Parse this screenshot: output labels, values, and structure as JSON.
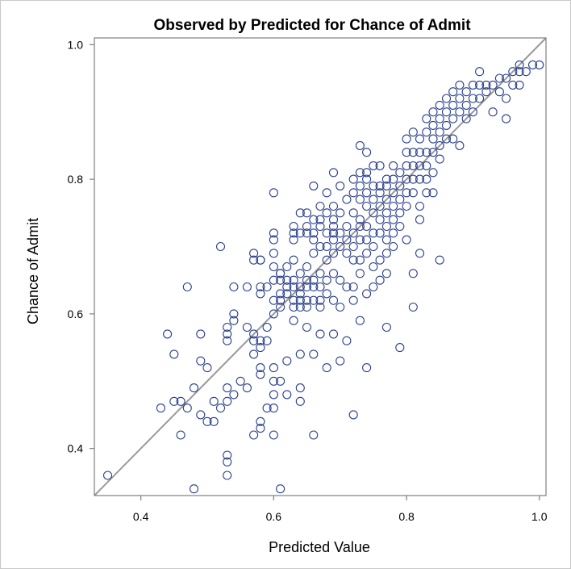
{
  "chart_data": {
    "type": "scatter",
    "title": "Observed by Predicted for Chance of Admit",
    "xlabel": "Predicted Value",
    "ylabel": "Chance of Admit",
    "xlim": [
      0.33,
      1.01
    ],
    "ylim": [
      0.33,
      1.01
    ],
    "xticks": [
      "0.4",
      "0.6",
      "0.8",
      "1.0"
    ],
    "yticks": [
      "0.4",
      "0.6",
      "0.8",
      "1.0"
    ],
    "xtick_values": [
      0.4,
      0.6,
      0.8,
      1.0
    ],
    "ytick_values": [
      0.4,
      0.6,
      0.8,
      1.0
    ],
    "reference_line": "y = x",
    "grid": false,
    "legend": "none",
    "colors": {
      "points": "#2a3f8f",
      "reference_line": "#999999",
      "axes": "#7f7f7f"
    },
    "points": [
      [
        0.35,
        0.36
      ],
      [
        0.43,
        0.46
      ],
      [
        0.44,
        0.57
      ],
      [
        0.45,
        0.47
      ],
      [
        0.45,
        0.54
      ],
      [
        0.46,
        0.47
      ],
      [
        0.46,
        0.42
      ],
      [
        0.47,
        0.46
      ],
      [
        0.47,
        0.64
      ],
      [
        0.48,
        0.34
      ],
      [
        0.48,
        0.49
      ],
      [
        0.49,
        0.45
      ],
      [
        0.49,
        0.53
      ],
      [
        0.49,
        0.57
      ],
      [
        0.5,
        0.52
      ],
      [
        0.5,
        0.44
      ],
      [
        0.51,
        0.44
      ],
      [
        0.51,
        0.47
      ],
      [
        0.52,
        0.46
      ],
      [
        0.52,
        0.7
      ],
      [
        0.53,
        0.47
      ],
      [
        0.53,
        0.49
      ],
      [
        0.53,
        0.39
      ],
      [
        0.53,
        0.38
      ],
      [
        0.53,
        0.36
      ],
      [
        0.53,
        0.56
      ],
      [
        0.53,
        0.57
      ],
      [
        0.53,
        0.58
      ],
      [
        0.54,
        0.59
      ],
      [
        0.54,
        0.6
      ],
      [
        0.54,
        0.48
      ],
      [
        0.54,
        0.64
      ],
      [
        0.55,
        0.5
      ],
      [
        0.56,
        0.64
      ],
      [
        0.56,
        0.49
      ],
      [
        0.56,
        0.58
      ],
      [
        0.57,
        0.69
      ],
      [
        0.57,
        0.68
      ],
      [
        0.57,
        0.57
      ],
      [
        0.57,
        0.56
      ],
      [
        0.57,
        0.54
      ],
      [
        0.57,
        0.42
      ],
      [
        0.58,
        0.68
      ],
      [
        0.58,
        0.68
      ],
      [
        0.58,
        0.64
      ],
      [
        0.58,
        0.63
      ],
      [
        0.58,
        0.56
      ],
      [
        0.58,
        0.55
      ],
      [
        0.58,
        0.52
      ],
      [
        0.58,
        0.51
      ],
      [
        0.58,
        0.44
      ],
      [
        0.58,
        0.43
      ],
      [
        0.59,
        0.64
      ],
      [
        0.59,
        0.58
      ],
      [
        0.59,
        0.56
      ],
      [
        0.59,
        0.46
      ],
      [
        0.6,
        0.65
      ],
      [
        0.6,
        0.62
      ],
      [
        0.6,
        0.6
      ],
      [
        0.6,
        0.5
      ],
      [
        0.6,
        0.48
      ],
      [
        0.6,
        0.46
      ],
      [
        0.6,
        0.42
      ],
      [
        0.6,
        0.78
      ],
      [
        0.6,
        0.72
      ],
      [
        0.6,
        0.71
      ],
      [
        0.6,
        0.69
      ],
      [
        0.6,
        0.67
      ],
      [
        0.6,
        0.52
      ],
      [
        0.61,
        0.66
      ],
      [
        0.61,
        0.61
      ],
      [
        0.61,
        0.34
      ],
      [
        0.61,
        0.66
      ],
      [
        0.61,
        0.65
      ],
      [
        0.61,
        0.63
      ],
      [
        0.61,
        0.62
      ],
      [
        0.61,
        0.5
      ],
      [
        0.62,
        0.67
      ],
      [
        0.62,
        0.65
      ],
      [
        0.62,
        0.64
      ],
      [
        0.62,
        0.63
      ],
      [
        0.62,
        0.48
      ],
      [
        0.62,
        0.53
      ],
      [
        0.63,
        0.65
      ],
      [
        0.63,
        0.64
      ],
      [
        0.63,
        0.62
      ],
      [
        0.63,
        0.61
      ],
      [
        0.63,
        0.59
      ],
      [
        0.63,
        0.72
      ],
      [
        0.63,
        0.73
      ],
      [
        0.63,
        0.71
      ],
      [
        0.63,
        0.68
      ],
      [
        0.64,
        0.66
      ],
      [
        0.64,
        0.64
      ],
      [
        0.64,
        0.63
      ],
      [
        0.64,
        0.62
      ],
      [
        0.64,
        0.61
      ],
      [
        0.64,
        0.49
      ],
      [
        0.64,
        0.47
      ],
      [
        0.64,
        0.54
      ],
      [
        0.64,
        0.75
      ],
      [
        0.64,
        0.72
      ],
      [
        0.65,
        0.65
      ],
      [
        0.65,
        0.64
      ],
      [
        0.65,
        0.62
      ],
      [
        0.65,
        0.61
      ],
      [
        0.65,
        0.58
      ],
      [
        0.65,
        0.67
      ],
      [
        0.65,
        0.75
      ],
      [
        0.65,
        0.73
      ],
      [
        0.65,
        0.72
      ],
      [
        0.66,
        0.69
      ],
      [
        0.66,
        0.65
      ],
      [
        0.66,
        0.64
      ],
      [
        0.66,
        0.62
      ],
      [
        0.66,
        0.79
      ],
      [
        0.66,
        0.74
      ],
      [
        0.66,
        0.72
      ],
      [
        0.66,
        0.71
      ],
      [
        0.66,
        0.54
      ],
      [
        0.66,
        0.42
      ],
      [
        0.67,
        0.66
      ],
      [
        0.67,
        0.64
      ],
      [
        0.67,
        0.62
      ],
      [
        0.67,
        0.74
      ],
      [
        0.67,
        0.73
      ],
      [
        0.67,
        0.7
      ],
      [
        0.67,
        0.61
      ],
      [
        0.67,
        0.57
      ],
      [
        0.67,
        0.76
      ],
      [
        0.68,
        0.78
      ],
      [
        0.68,
        0.75
      ],
      [
        0.68,
        0.72
      ],
      [
        0.68,
        0.7
      ],
      [
        0.68,
        0.68
      ],
      [
        0.68,
        0.65
      ],
      [
        0.68,
        0.63
      ],
      [
        0.68,
        0.52
      ],
      [
        0.69,
        0.81
      ],
      [
        0.69,
        0.76
      ],
      [
        0.69,
        0.74
      ],
      [
        0.69,
        0.73
      ],
      [
        0.69,
        0.72
      ],
      [
        0.69,
        0.71
      ],
      [
        0.69,
        0.69
      ],
      [
        0.69,
        0.66
      ],
      [
        0.69,
        0.62
      ],
      [
        0.69,
        0.57
      ],
      [
        0.7,
        0.79
      ],
      [
        0.7,
        0.75
      ],
      [
        0.7,
        0.72
      ],
      [
        0.7,
        0.7
      ],
      [
        0.7,
        0.65
      ],
      [
        0.7,
        0.61
      ],
      [
        0.7,
        0.53
      ],
      [
        0.71,
        0.77
      ],
      [
        0.71,
        0.73
      ],
      [
        0.71,
        0.71
      ],
      [
        0.71,
        0.69
      ],
      [
        0.71,
        0.64
      ],
      [
        0.71,
        0.56
      ],
      [
        0.72,
        0.8
      ],
      [
        0.72,
        0.78
      ],
      [
        0.72,
        0.75
      ],
      [
        0.72,
        0.72
      ],
      [
        0.72,
        0.7
      ],
      [
        0.72,
        0.68
      ],
      [
        0.72,
        0.64
      ],
      [
        0.72,
        0.62
      ],
      [
        0.72,
        0.45
      ],
      [
        0.73,
        0.85
      ],
      [
        0.73,
        0.81
      ],
      [
        0.73,
        0.79
      ],
      [
        0.73,
        0.77
      ],
      [
        0.73,
        0.74
      ],
      [
        0.73,
        0.73
      ],
      [
        0.73,
        0.71
      ],
      [
        0.73,
        0.68
      ],
      [
        0.73,
        0.66
      ],
      [
        0.73,
        0.59
      ],
      [
        0.74,
        0.84
      ],
      [
        0.74,
        0.81
      ],
      [
        0.74,
        0.8
      ],
      [
        0.74,
        0.78
      ],
      [
        0.74,
        0.76
      ],
      [
        0.74,
        0.73
      ],
      [
        0.74,
        0.71
      ],
      [
        0.74,
        0.69
      ],
      [
        0.74,
        0.63
      ],
      [
        0.74,
        0.52
      ],
      [
        0.75,
        0.82
      ],
      [
        0.75,
        0.79
      ],
      [
        0.75,
        0.77
      ],
      [
        0.75,
        0.75
      ],
      [
        0.75,
        0.72
      ],
      [
        0.75,
        0.7
      ],
      [
        0.75,
        0.67
      ],
      [
        0.75,
        0.64
      ],
      [
        0.76,
        0.82
      ],
      [
        0.76,
        0.79
      ],
      [
        0.76,
        0.78
      ],
      [
        0.76,
        0.76
      ],
      [
        0.76,
        0.74
      ],
      [
        0.76,
        0.72
      ],
      [
        0.76,
        0.68
      ],
      [
        0.76,
        0.65
      ],
      [
        0.77,
        0.8
      ],
      [
        0.77,
        0.79
      ],
      [
        0.77,
        0.77
      ],
      [
        0.77,
        0.75
      ],
      [
        0.77,
        0.73
      ],
      [
        0.77,
        0.71
      ],
      [
        0.77,
        0.69
      ],
      [
        0.77,
        0.66
      ],
      [
        0.77,
        0.58
      ],
      [
        0.78,
        0.82
      ],
      [
        0.78,
        0.8
      ],
      [
        0.78,
        0.78
      ],
      [
        0.78,
        0.76
      ],
      [
        0.78,
        0.74
      ],
      [
        0.78,
        0.72
      ],
      [
        0.78,
        0.7
      ],
      [
        0.79,
        0.81
      ],
      [
        0.79,
        0.79
      ],
      [
        0.79,
        0.77
      ],
      [
        0.79,
        0.75
      ],
      [
        0.79,
        0.73
      ],
      [
        0.79,
        0.55
      ],
      [
        0.8,
        0.86
      ],
      [
        0.8,
        0.84
      ],
      [
        0.8,
        0.82
      ],
      [
        0.8,
        0.8
      ],
      [
        0.8,
        0.78
      ],
      [
        0.8,
        0.76
      ],
      [
        0.8,
        0.71
      ],
      [
        0.81,
        0.87
      ],
      [
        0.81,
        0.84
      ],
      [
        0.81,
        0.82
      ],
      [
        0.81,
        0.8
      ],
      [
        0.81,
        0.78
      ],
      [
        0.81,
        0.61
      ],
      [
        0.81,
        0.66
      ],
      [
        0.82,
        0.86
      ],
      [
        0.82,
        0.84
      ],
      [
        0.82,
        0.82
      ],
      [
        0.82,
        0.8
      ],
      [
        0.82,
        0.76
      ],
      [
        0.82,
        0.74
      ],
      [
        0.82,
        0.69
      ],
      [
        0.83,
        0.89
      ],
      [
        0.83,
        0.87
      ],
      [
        0.83,
        0.84
      ],
      [
        0.83,
        0.82
      ],
      [
        0.83,
        0.8
      ],
      [
        0.83,
        0.78
      ],
      [
        0.84,
        0.9
      ],
      [
        0.84,
        0.88
      ],
      [
        0.84,
        0.86
      ],
      [
        0.84,
        0.84
      ],
      [
        0.84,
        0.81
      ],
      [
        0.84,
        0.78
      ],
      [
        0.85,
        0.91
      ],
      [
        0.85,
        0.89
      ],
      [
        0.85,
        0.87
      ],
      [
        0.85,
        0.85
      ],
      [
        0.85,
        0.83
      ],
      [
        0.85,
        0.68
      ],
      [
        0.86,
        0.92
      ],
      [
        0.86,
        0.9
      ],
      [
        0.86,
        0.88
      ],
      [
        0.86,
        0.86
      ],
      [
        0.87,
        0.93
      ],
      [
        0.87,
        0.91
      ],
      [
        0.87,
        0.89
      ],
      [
        0.87,
        0.86
      ],
      [
        0.88,
        0.94
      ],
      [
        0.88,
        0.92
      ],
      [
        0.88,
        0.9
      ],
      [
        0.88,
        0.85
      ],
      [
        0.89,
        0.93
      ],
      [
        0.89,
        0.91
      ],
      [
        0.89,
        0.89
      ],
      [
        0.9,
        0.94
      ],
      [
        0.9,
        0.92
      ],
      [
        0.9,
        0.9
      ],
      [
        0.91,
        0.96
      ],
      [
        0.91,
        0.94
      ],
      [
        0.91,
        0.92
      ],
      [
        0.92,
        0.94
      ],
      [
        0.92,
        0.93
      ],
      [
        0.93,
        0.9
      ],
      [
        0.93,
        0.94
      ],
      [
        0.94,
        0.95
      ],
      [
        0.94,
        0.93
      ],
      [
        0.95,
        0.95
      ],
      [
        0.95,
        0.92
      ],
      [
        0.95,
        0.89
      ],
      [
        0.96,
        0.96
      ],
      [
        0.96,
        0.94
      ],
      [
        0.97,
        0.96
      ],
      [
        0.97,
        0.97
      ],
      [
        0.97,
        0.94
      ],
      [
        0.98,
        0.96
      ],
      [
        0.99,
        0.97
      ],
      [
        1.0,
        0.97
      ]
    ]
  }
}
